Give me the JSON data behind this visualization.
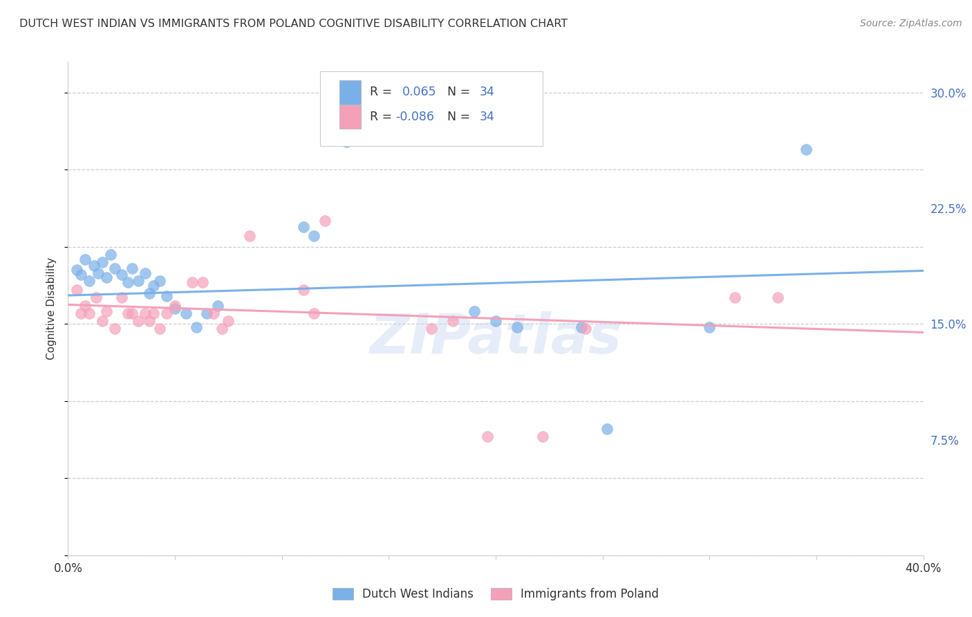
{
  "title": "DUTCH WEST INDIAN VS IMMIGRANTS FROM POLAND COGNITIVE DISABILITY CORRELATION CHART",
  "source": "Source: ZipAtlas.com",
  "ylabel": "Cognitive Disability",
  "right_yticks": [
    0.0,
    0.075,
    0.15,
    0.225,
    0.3
  ],
  "right_yticklabels": [
    "",
    "7.5%",
    "15.0%",
    "22.5%",
    "30.0%"
  ],
  "legend_bottom1": "Dutch West Indians",
  "legend_bottom2": "Immigrants from Poland",
  "blue_color": "#7ab0e8",
  "pink_color": "#f4a0b8",
  "blue_edge": "#7ab0e8",
  "pink_edge": "#f4a0b8",
  "blue_scatter": [
    [
      0.004,
      0.185
    ],
    [
      0.006,
      0.182
    ],
    [
      0.008,
      0.192
    ],
    [
      0.01,
      0.178
    ],
    [
      0.012,
      0.188
    ],
    [
      0.014,
      0.183
    ],
    [
      0.016,
      0.19
    ],
    [
      0.018,
      0.18
    ],
    [
      0.02,
      0.195
    ],
    [
      0.022,
      0.186
    ],
    [
      0.025,
      0.182
    ],
    [
      0.028,
      0.177
    ],
    [
      0.03,
      0.186
    ],
    [
      0.033,
      0.178
    ],
    [
      0.036,
      0.183
    ],
    [
      0.038,
      0.17
    ],
    [
      0.04,
      0.175
    ],
    [
      0.043,
      0.178
    ],
    [
      0.046,
      0.168
    ],
    [
      0.05,
      0.16
    ],
    [
      0.055,
      0.157
    ],
    [
      0.06,
      0.148
    ],
    [
      0.065,
      0.157
    ],
    [
      0.07,
      0.162
    ],
    [
      0.11,
      0.213
    ],
    [
      0.115,
      0.207
    ],
    [
      0.13,
      0.268
    ],
    [
      0.19,
      0.158
    ],
    [
      0.2,
      0.152
    ],
    [
      0.21,
      0.148
    ],
    [
      0.24,
      0.148
    ],
    [
      0.252,
      0.082
    ],
    [
      0.3,
      0.148
    ],
    [
      0.345,
      0.263
    ]
  ],
  "pink_scatter": [
    [
      0.004,
      0.172
    ],
    [
      0.006,
      0.157
    ],
    [
      0.008,
      0.162
    ],
    [
      0.01,
      0.157
    ],
    [
      0.013,
      0.167
    ],
    [
      0.016,
      0.152
    ],
    [
      0.018,
      0.158
    ],
    [
      0.022,
      0.147
    ],
    [
      0.025,
      0.167
    ],
    [
      0.028,
      0.157
    ],
    [
      0.03,
      0.157
    ],
    [
      0.033,
      0.152
    ],
    [
      0.036,
      0.157
    ],
    [
      0.038,
      0.152
    ],
    [
      0.04,
      0.157
    ],
    [
      0.043,
      0.147
    ],
    [
      0.046,
      0.157
    ],
    [
      0.05,
      0.162
    ],
    [
      0.058,
      0.177
    ],
    [
      0.063,
      0.177
    ],
    [
      0.068,
      0.157
    ],
    [
      0.072,
      0.147
    ],
    [
      0.075,
      0.152
    ],
    [
      0.085,
      0.207
    ],
    [
      0.11,
      0.172
    ],
    [
      0.115,
      0.157
    ],
    [
      0.12,
      0.217
    ],
    [
      0.17,
      0.147
    ],
    [
      0.18,
      0.152
    ],
    [
      0.196,
      0.077
    ],
    [
      0.222,
      0.077
    ],
    [
      0.242,
      0.147
    ],
    [
      0.312,
      0.167
    ],
    [
      0.332,
      0.167
    ]
  ],
  "xlim": [
    0.0,
    0.4
  ],
  "ylim": [
    0.0,
    0.32
  ],
  "blue_line_x": [
    0.0,
    0.4
  ],
  "blue_line_y": [
    0.1685,
    0.1845
  ],
  "pink_line_x": [
    0.0,
    0.4
  ],
  "pink_line_y": [
    0.1625,
    0.1445
  ],
  "watermark": "ZIPatlas",
  "bg_color": "#ffffff",
  "grid_color": "#cccccc",
  "text_dark": "#333333",
  "text_blue": "#4472c4",
  "xtick_positions": [
    0.0,
    0.05,
    0.1,
    0.15,
    0.2,
    0.25,
    0.3,
    0.35,
    0.4
  ]
}
